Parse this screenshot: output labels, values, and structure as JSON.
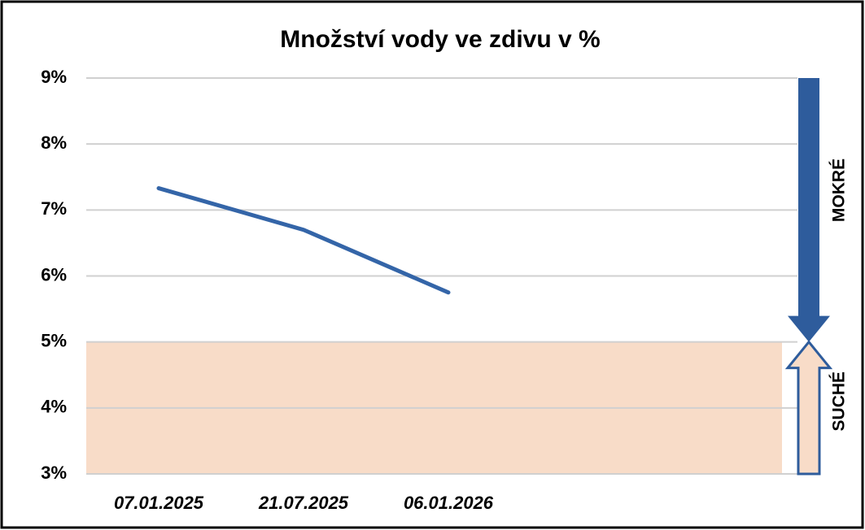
{
  "chart_data": {
    "type": "line",
    "title": "Množství vody ve zdivu v %",
    "categories": [
      "07.01.2025",
      "21.07.2025",
      "06.01.2026",
      null,
      null
    ],
    "series": [
      {
        "color": "#3465a8",
        "values": [
          7.33,
          6.7,
          5.75,
          null,
          null
        ]
      }
    ],
    "ylim": [
      3,
      9
    ],
    "yticks": [
      {
        "value": 3,
        "label": "3%"
      },
      {
        "value": 4,
        "label": "4%"
      },
      {
        "value": 5,
        "label": "5%"
      },
      {
        "value": 6,
        "label": "6%"
      },
      {
        "value": 7,
        "label": "7%"
      },
      {
        "value": 8,
        "label": "8%"
      },
      {
        "value": 9,
        "label": "9%"
      }
    ],
    "grid": true,
    "annotations": [
      {
        "label": "MOKRÉ",
        "from": 9,
        "to": 5,
        "color": "#2e5c9c"
      },
      {
        "label": "SUCHÉ",
        "from": 3,
        "to": 5,
        "color": "#f8dcc8"
      }
    ]
  }
}
